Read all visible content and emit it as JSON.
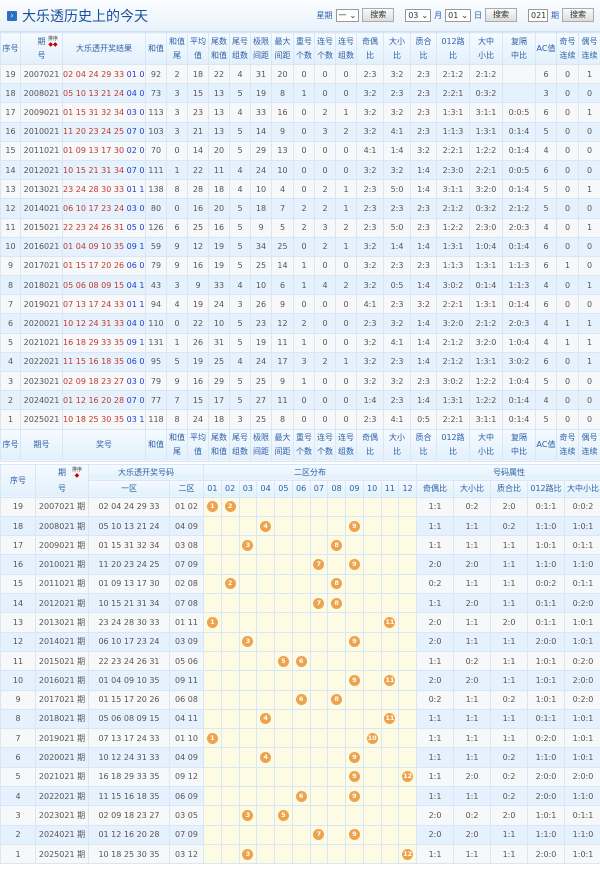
{
  "title": "大乐透历史上的今天",
  "search": {
    "week_label": "星期",
    "week_value": "一",
    "month_value": "03",
    "month_label": "月",
    "day_value": "01",
    "day_label": "日",
    "issue_value": "021",
    "issue_label": "期",
    "button": "搜索"
  },
  "table1": {
    "headers": [
      "序号",
      "期号",
      "大乐透开奖结果",
      "和值",
      "和值尾",
      "平均值",
      "尾数和值",
      "尾号组数",
      "极限间距",
      "最大间距",
      "重号个数",
      "连号个数",
      "连号组数",
      "奇偶比",
      "大小比",
      "质合比",
      "012路比",
      "大中小比",
      "复隔中比",
      "AC值",
      "奇号连续",
      "偶号连续"
    ],
    "header_lines": [
      [
        "序号",
        ""
      ],
      [
        "期",
        "号"
      ],
      [
        "大乐透开奖结果",
        ""
      ],
      [
        "和值",
        ""
      ],
      [
        "和值",
        "尾"
      ],
      [
        "平均",
        "值"
      ],
      [
        "尾数",
        "和值"
      ],
      [
        "尾号",
        "组数"
      ],
      [
        "极限",
        "间距"
      ],
      [
        "最大",
        "间距"
      ],
      [
        "重号",
        "个数"
      ],
      [
        "连号",
        "个数"
      ],
      [
        "连号",
        "组数"
      ],
      [
        "奇偶",
        "比"
      ],
      [
        "大小",
        "比"
      ],
      [
        "质合",
        "比"
      ],
      [
        "012路",
        "比"
      ],
      [
        "大中",
        "小比"
      ],
      [
        "复隔",
        "中比"
      ],
      [
        "AC值",
        ""
      ],
      [
        "奇号",
        "连续"
      ],
      [
        "偶号",
        "连续"
      ]
    ],
    "sort_label": "排序",
    "footer_lines": [
      [
        "序号",
        ""
      ],
      [
        "期号",
        ""
      ],
      [
        "奖号",
        ""
      ],
      [
        "和值",
        ""
      ],
      [
        "和值",
        "尾"
      ],
      [
        "平均",
        "值"
      ],
      [
        "尾数",
        "和值"
      ],
      [
        "尾号",
        "组数"
      ],
      [
        "极限",
        "间距"
      ],
      [
        "最大",
        "间距"
      ],
      [
        "重号",
        "个数"
      ],
      [
        "连号",
        "个数"
      ],
      [
        "连号",
        "组数"
      ],
      [
        "奇偶",
        "比"
      ],
      [
        "大小",
        "比"
      ],
      [
        "质合",
        "比"
      ],
      [
        "012路",
        "比"
      ],
      [
        "大中",
        "小比"
      ],
      [
        "复隔",
        "中比"
      ],
      [
        "AC值",
        ""
      ],
      [
        "奇号",
        "连续"
      ],
      [
        "偶号",
        "连续"
      ]
    ],
    "rows": [
      [
        "19",
        "2007021",
        "02 04 24 29 33",
        "01 02",
        "92",
        "2",
        "18",
        "22",
        "4",
        "31",
        "20",
        "0",
        "0",
        "0",
        "2:3",
        "3:2",
        "2:3",
        "2:1:2",
        "2:1:2",
        "",
        "6",
        "0",
        "1"
      ],
      [
        "18",
        "2008021",
        "05 10 13 21 24",
        "04 09",
        "73",
        "3",
        "15",
        "13",
        "5",
        "19",
        "8",
        "1",
        "0",
        "0",
        "3:2",
        "2:3",
        "2:3",
        "2:2:1",
        "0:3:2",
        "",
        "3",
        "0",
        "0"
      ],
      [
        "17",
        "2009021",
        "01 15 31 32 34",
        "03 08",
        "113",
        "3",
        "23",
        "13",
        "4",
        "33",
        "16",
        "0",
        "2",
        "1",
        "3:2",
        "3:2",
        "2:3",
        "1:3:1",
        "3:1:1",
        "0:0:5",
        "6",
        "0",
        "1"
      ],
      [
        "16",
        "2010021",
        "11 20 23 24 25",
        "07 09",
        "103",
        "3",
        "21",
        "13",
        "5",
        "14",
        "9",
        "0",
        "3",
        "2",
        "3:2",
        "4:1",
        "2:3",
        "1:1:3",
        "1:3:1",
        "0:1:4",
        "5",
        "0",
        "0"
      ],
      [
        "15",
        "2011021",
        "01 09 13 17 30",
        "02 08",
        "70",
        "0",
        "14",
        "20",
        "5",
        "29",
        "13",
        "0",
        "0",
        "0",
        "4:1",
        "1:4",
        "3:2",
        "2:2:1",
        "1:2:2",
        "0:1:4",
        "4",
        "0",
        "0"
      ],
      [
        "14",
        "2012021",
        "10 15 21 31 34",
        "07 08",
        "111",
        "1",
        "22",
        "11",
        "4",
        "24",
        "10",
        "0",
        "0",
        "0",
        "3:2",
        "3:2",
        "1:4",
        "2:3:0",
        "2:2:1",
        "0:0:5",
        "6",
        "0",
        "0"
      ],
      [
        "13",
        "2013021",
        "23 24 28 30 33",
        "01 11",
        "138",
        "8",
        "28",
        "18",
        "4",
        "10",
        "4",
        "0",
        "2",
        "1",
        "2:3",
        "5:0",
        "1:4",
        "3:1:1",
        "3:2:0",
        "0:1:4",
        "5",
        "0",
        "1"
      ],
      [
        "12",
        "2014021",
        "06 10 17 23 24",
        "03 09",
        "80",
        "0",
        "16",
        "20",
        "5",
        "18",
        "7",
        "2",
        "2",
        "1",
        "2:3",
        "2:3",
        "2:3",
        "2:1:2",
        "0:3:2",
        "2:1:2",
        "5",
        "0",
        "0"
      ],
      [
        "11",
        "2015021",
        "22 23 24 26 31",
        "05 06",
        "126",
        "6",
        "25",
        "16",
        "5",
        "9",
        "5",
        "2",
        "3",
        "2",
        "2:3",
        "5:0",
        "2:3",
        "1:2:2",
        "2:3:0",
        "2:0:3",
        "4",
        "0",
        "1"
      ],
      [
        "10",
        "2016021",
        "01 04 09 10 35",
        "09 11",
        "59",
        "9",
        "12",
        "19",
        "5",
        "34",
        "25",
        "0",
        "2",
        "1",
        "3:2",
        "1:4",
        "1:4",
        "1:3:1",
        "1:0:4",
        "0:1:4",
        "6",
        "0",
        "0"
      ],
      [
        "9",
        "2017021",
        "01 15 17 20 26",
        "06 08",
        "79",
        "9",
        "16",
        "19",
        "5",
        "25",
        "14",
        "1",
        "0",
        "0",
        "3:2",
        "2:3",
        "2:3",
        "1:1:3",
        "1:3:1",
        "1:1:3",
        "6",
        "1",
        "0"
      ],
      [
        "8",
        "2018021",
        "05 06 08 09 15",
        "04 11",
        "43",
        "3",
        "9",
        "33",
        "4",
        "10",
        "6",
        "1",
        "4",
        "2",
        "3:2",
        "0:5",
        "1:4",
        "3:0:2",
        "0:1:4",
        "1:1:3",
        "4",
        "0",
        "1"
      ],
      [
        "7",
        "2019021",
        "07 13 17 24 33",
        "01 10",
        "94",
        "4",
        "19",
        "24",
        "3",
        "26",
        "9",
        "0",
        "0",
        "0",
        "4:1",
        "2:3",
        "3:2",
        "2:2:1",
        "1:3:1",
        "0:1:4",
        "6",
        "0",
        "0"
      ],
      [
        "6",
        "2020021",
        "10 12 24 31 33",
        "04 09",
        "110",
        "0",
        "22",
        "10",
        "5",
        "23",
        "12",
        "2",
        "0",
        "0",
        "2:3",
        "3:2",
        "1:4",
        "3:2:0",
        "2:1:2",
        "2:0:3",
        "4",
        "1",
        "1"
      ],
      [
        "5",
        "2021021",
        "16 18 29 33 35",
        "09 12",
        "131",
        "1",
        "26",
        "31",
        "5",
        "19",
        "11",
        "1",
        "0",
        "0",
        "3:2",
        "4:1",
        "1:4",
        "2:1:2",
        "3:2:0",
        "1:0:4",
        "4",
        "1",
        "1"
      ],
      [
        "4",
        "2022021",
        "11 15 16 18 35",
        "06 09",
        "95",
        "5",
        "19",
        "25",
        "4",
        "24",
        "17",
        "3",
        "2",
        "1",
        "3:2",
        "2:3",
        "1:4",
        "2:1:2",
        "1:3:1",
        "3:0:2",
        "6",
        "0",
        "1"
      ],
      [
        "3",
        "2023021",
        "02 09 18 23 27",
        "03 05",
        "79",
        "9",
        "16",
        "29",
        "5",
        "25",
        "9",
        "1",
        "0",
        "0",
        "3:2",
        "3:2",
        "2:3",
        "3:0:2",
        "1:2:2",
        "1:0:4",
        "5",
        "0",
        "0"
      ],
      [
        "2",
        "2024021",
        "01 12 16 20 28",
        "07 09",
        "77",
        "7",
        "15",
        "17",
        "5",
        "27",
        "11",
        "0",
        "0",
        "0",
        "1:4",
        "2:3",
        "1:4",
        "1:3:1",
        "1:2:2",
        "0:1:4",
        "4",
        "0",
        "0"
      ],
      [
        "1",
        "2025021",
        "10 18 25 30 35",
        "03 12",
        "118",
        "8",
        "24",
        "18",
        "3",
        "25",
        "8",
        "0",
        "0",
        "0",
        "2:3",
        "4:1",
        "0:5",
        "2:2:1",
        "3:1:1",
        "0:1:4",
        "5",
        "0",
        "0"
      ]
    ]
  },
  "table2": {
    "h_seq": "序号",
    "h_issue": [
      "期",
      "号"
    ],
    "sort_label": "排序",
    "h_numbers": "大乐透开奖号码",
    "h_zone1": "一区",
    "h_zone2": "二区",
    "h_dist": "二区分布",
    "h_attr": "号码属性",
    "dist_cols": [
      "01",
      "02",
      "03",
      "04",
      "05",
      "06",
      "07",
      "08",
      "09",
      "10",
      "11",
      "12"
    ],
    "attr_cols": [
      "奇偶比",
      "大小比",
      "质合比",
      "012路比",
      "大中小比"
    ],
    "issue_suffix": "期",
    "rows": [
      [
        "19",
        "2007021",
        "02 04 24 29 33",
        "01 02",
        "1:1",
        "0:2",
        "2:0",
        "0:1:1",
        "0:0:2"
      ],
      [
        "18",
        "2008021",
        "05 10 13 21 24",
        "04 09",
        "1:1",
        "1:1",
        "0:2",
        "1:1:0",
        "1:0:1"
      ],
      [
        "17",
        "2009021",
        "01 15 31 32 34",
        "03 08",
        "1:1",
        "1:1",
        "1:1",
        "1:0:1",
        "0:1:1"
      ],
      [
        "16",
        "2010021",
        "11 20 23 24 25",
        "07 09",
        "2:0",
        "2:0",
        "1:1",
        "1:1:0",
        "1:1:0"
      ],
      [
        "15",
        "2011021",
        "01 09 13 17 30",
        "02 08",
        "0:2",
        "1:1",
        "1:1",
        "0:0:2",
        "0:1:1"
      ],
      [
        "14",
        "2012021",
        "10 15 21 31 34",
        "07 08",
        "1:1",
        "2:0",
        "1:1",
        "0:1:1",
        "0:2:0"
      ],
      [
        "13",
        "2013021",
        "23 24 28 30 33",
        "01 11",
        "2:0",
        "1:1",
        "2:0",
        "0:1:1",
        "1:0:1"
      ],
      [
        "12",
        "2014021",
        "06 10 17 23 24",
        "03 09",
        "2:0",
        "1:1",
        "1:1",
        "2:0:0",
        "1:0:1"
      ],
      [
        "11",
        "2015021",
        "22 23 24 26 31",
        "05 06",
        "1:1",
        "0:2",
        "1:1",
        "1:0:1",
        "0:2:0"
      ],
      [
        "10",
        "2016021",
        "01 04 09 10 35",
        "09 11",
        "2:0",
        "2:0",
        "1:1",
        "1:0:1",
        "2:0:0"
      ],
      [
        "9",
        "2017021",
        "01 15 17 20 26",
        "06 08",
        "0:2",
        "1:1",
        "0:2",
        "1:0:1",
        "0:2:0"
      ],
      [
        "8",
        "2018021",
        "05 06 08 09 15",
        "04 11",
        "1:1",
        "1:1",
        "1:1",
        "0:1:1",
        "1:0:1"
      ],
      [
        "7",
        "2019021",
        "07 13 17 24 33",
        "01 10",
        "1:1",
        "1:1",
        "1:1",
        "0:2:0",
        "1:0:1"
      ],
      [
        "6",
        "2020021",
        "10 12 24 31 33",
        "04 09",
        "1:1",
        "1:1",
        "0:2",
        "1:1:0",
        "1:0:1"
      ],
      [
        "5",
        "2021021",
        "16 18 29 33 35",
        "09 12",
        "1:1",
        "2:0",
        "0:2",
        "2:0:0",
        "2:0:0"
      ],
      [
        "4",
        "2022021",
        "11 15 16 18 35",
        "06 09",
        "1:1",
        "1:1",
        "0:2",
        "2:0:0",
        "1:1:0"
      ],
      [
        "3",
        "2023021",
        "02 09 18 23 27",
        "03 05",
        "2:0",
        "0:2",
        "2:0",
        "1:0:1",
        "0:1:1"
      ],
      [
        "2",
        "2024021",
        "01 12 16 20 28",
        "07 09",
        "2:0",
        "2:0",
        "1:1",
        "1:1:0",
        "1:1:0"
      ],
      [
        "1",
        "2025021",
        "10 18 25 30 35",
        "03 12",
        "1:1",
        "1:1",
        "1:1",
        "2:0:0",
        "1:0:1"
      ]
    ]
  },
  "colors": {
    "front": "#c0392b",
    "back": "#1f3fd0",
    "ball": "#eda24e",
    "dist_bg": "#fdfbe3",
    "row_alt": "#e5f2fd"
  }
}
